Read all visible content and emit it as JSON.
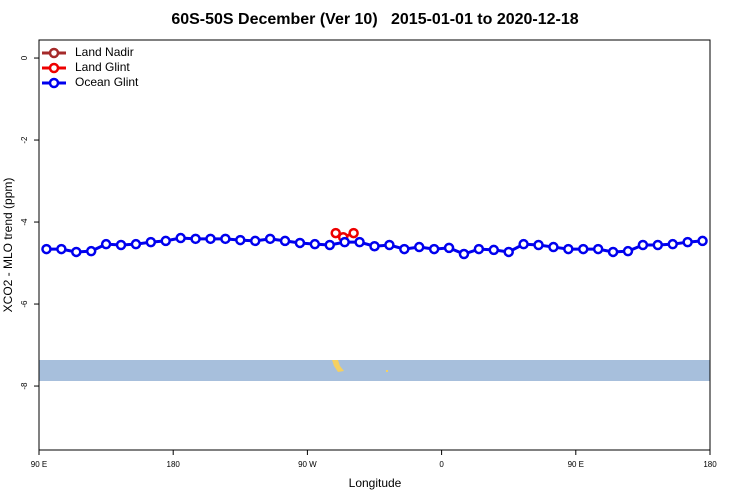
{
  "chart_data": {
    "type": "line",
    "title": "60S-50S December (Ver 10)   2015-01-01 to 2020-12-18",
    "x_label": "Longitude",
    "y_label": "XCO2 - MLO trend (ppm)",
    "xlim": [
      90,
      540
    ],
    "xticks": [
      {
        "value": 90,
        "label": "90 E"
      },
      180,
      {
        "value": 270,
        "label": "90 W"
      },
      {
        "value": 360,
        "label": "0"
      },
      {
        "value": 450,
        "label": "90 E"
      },
      {
        "value": 540,
        "label": "180"
      }
    ],
    "ylim": [
      -9.56,
      0.44
    ],
    "yticks": [
      0,
      -2,
      -4,
      -6,
      -8
    ],
    "legend": "top-left",
    "series": [
      {
        "name": "Land Nadir",
        "color": "#a52a2a",
        "x": [],
        "values": []
      },
      {
        "name": "Land Glint",
        "color": "#ee0000",
        "x": [
          289,
          294,
          301
        ],
        "values": [
          -4.27,
          -4.37,
          -4.27
        ]
      },
      {
        "name": "Ocean Glint",
        "color": "#0000ee",
        "x": [
          95,
          105,
          115,
          125,
          135,
          145,
          155,
          165,
          175,
          185,
          195,
          205,
          215,
          225,
          235,
          245,
          255,
          265,
          275,
          285,
          295,
          305,
          315,
          325,
          335,
          345,
          355,
          365,
          375,
          385,
          395,
          405,
          415,
          425,
          435,
          445,
          455,
          465,
          475,
          485,
          495,
          505,
          515,
          525,
          535
        ],
        "values": [
          -4.66,
          -4.66,
          -4.73,
          -4.71,
          -4.54,
          -4.56,
          -4.54,
          -4.49,
          -4.46,
          -4.39,
          -4.41,
          -4.41,
          -4.41,
          -4.44,
          -4.46,
          -4.41,
          -4.46,
          -4.51,
          -4.54,
          -4.56,
          -4.49,
          -4.49,
          -4.59,
          -4.56,
          -4.66,
          -4.61,
          -4.66,
          -4.63,
          -4.78,
          -4.66,
          -4.68,
          -4.73,
          -4.54,
          -4.56,
          -4.61,
          -4.66,
          -4.66,
          -4.66,
          -4.73,
          -4.71,
          -4.56,
          -4.56,
          -4.54,
          -4.49,
          -4.46
        ]
      }
    ]
  }
}
